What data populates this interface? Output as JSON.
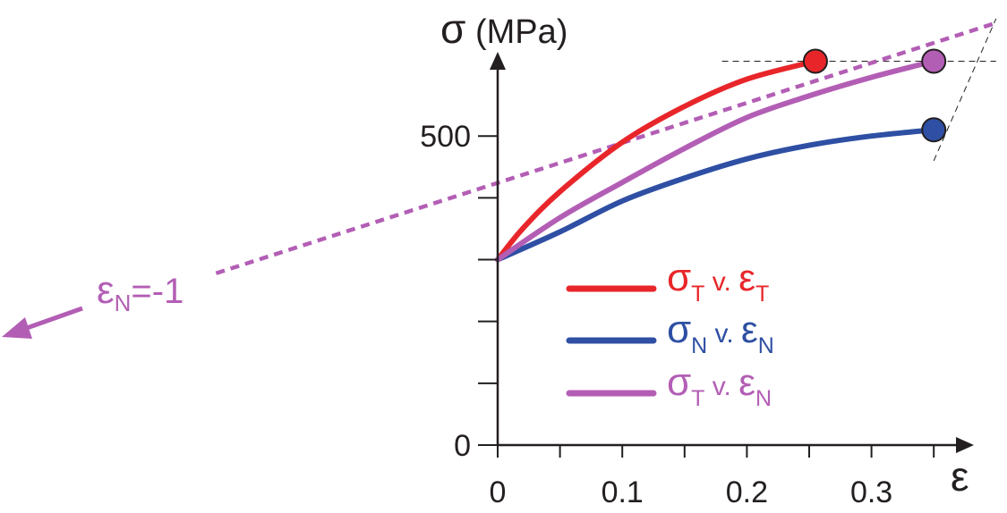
{
  "chart_data": {
    "type": "line",
    "ylabel": {
      "symbol": "σ",
      "unit": " (MPa)"
    },
    "xlabel": "ε",
    "x_ticks": [
      0,
      0.05,
      0.1,
      0.15,
      0.2,
      0.25,
      0.3,
      0.35
    ],
    "x_tick_labels": [
      {
        "value": 0,
        "label": "0"
      },
      {
        "value": 0.1,
        "label": "0.1"
      },
      {
        "value": 0.2,
        "label": "0.2"
      },
      {
        "value": 0.3,
        "label": "0.3"
      }
    ],
    "y_ticks": [
      0,
      100,
      200,
      300,
      400,
      500
    ],
    "y_tick_labels": [
      {
        "value": 0,
        "label": "0"
      },
      {
        "value": 500,
        "label": "500"
      }
    ],
    "xlim": [
      0,
      0.37
    ],
    "ylim": [
      0,
      630
    ],
    "series": [
      {
        "legend": {
          "main": "σ",
          "sub": "T",
          "mid": " v. ε",
          "sub2": "T"
        },
        "color": "#e8262a",
        "points": [
          [
            0,
            300
          ],
          [
            0.02,
            350
          ],
          [
            0.05,
            410
          ],
          [
            0.1,
            490
          ],
          [
            0.15,
            548
          ],
          [
            0.2,
            592
          ],
          [
            0.255,
            621
          ]
        ],
        "marker": [
          0.255,
          621
        ]
      },
      {
        "legend": {
          "main": "σ",
          "sub": "N",
          "mid": " v. ε",
          "sub2": "N"
        },
        "color": "#2e4fa3",
        "points": [
          [
            0,
            300
          ],
          [
            0.05,
            345
          ],
          [
            0.1,
            395
          ],
          [
            0.15,
            432
          ],
          [
            0.2,
            463
          ],
          [
            0.25,
            485
          ],
          [
            0.3,
            500
          ],
          [
            0.35,
            510
          ]
        ],
        "marker": [
          0.35,
          510
        ]
      },
      {
        "legend": {
          "main": "σ",
          "sub": "T",
          "mid": " v. ε",
          "sub2": "N"
        },
        "color": "#b35eb5",
        "points": [
          [
            0,
            300
          ],
          [
            0.05,
            368
          ],
          [
            0.1,
            425
          ],
          [
            0.15,
            480
          ],
          [
            0.2,
            530
          ],
          [
            0.25,
            565
          ],
          [
            0.3,
            595
          ],
          [
            0.35,
            621
          ]
        ],
        "marker": [
          0.35,
          621
        ]
      }
    ],
    "tangent_line": {
      "color": "#b35eb5",
      "style": "dashed",
      "from": [
        -0.226,
        278
      ],
      "to": [
        0.4,
        683
      ]
    },
    "guides": [
      {
        "from": [
          0.18,
          621
        ],
        "to": [
          0.4,
          621
        ]
      },
      {
        "from": [
          0.35,
          460
        ],
        "to": [
          0.4,
          690
        ]
      }
    ],
    "annotation": {
      "symbol": "ε",
      "sub": "N",
      "rest": "=-1",
      "color": "#b35eb5"
    },
    "legend_position": "lower-right",
    "grid": false
  }
}
